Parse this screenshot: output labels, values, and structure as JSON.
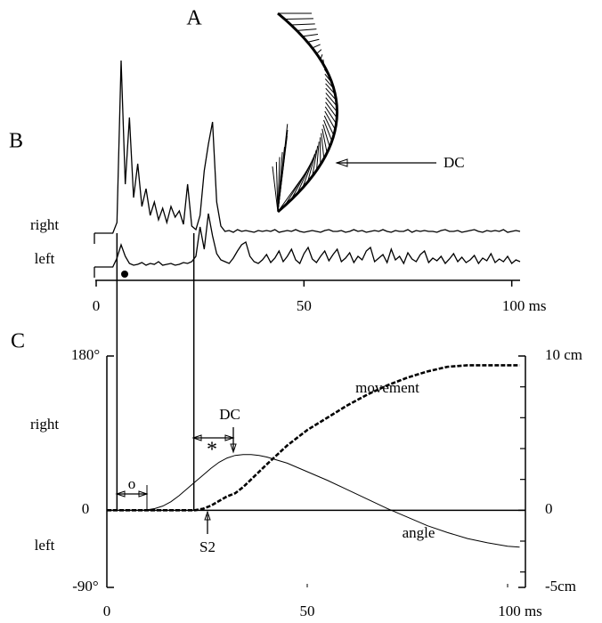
{
  "figure_labels": [
    "A",
    "B",
    "C"
  ],
  "panel_a": {
    "annotation": "DC"
  },
  "chart_data": [
    {
      "type": "line",
      "x": [
        0,
        1,
        2,
        3,
        4,
        5,
        6,
        7,
        8,
        9,
        10,
        11,
        12,
        13,
        14,
        15,
        16,
        17,
        18,
        19,
        20,
        21,
        22,
        23,
        24,
        25,
        26,
        27,
        28,
        29,
        30,
        31,
        32,
        33,
        34,
        35,
        36,
        37,
        38,
        39,
        40,
        41,
        42,
        43,
        44,
        45,
        46,
        47,
        48,
        49,
        50,
        51,
        52,
        53,
        54,
        55,
        56,
        57,
        58,
        59,
        60,
        61,
        62,
        63,
        64,
        65,
        66,
        67,
        68,
        69,
        70,
        71,
        72,
        73,
        74,
        75,
        76,
        77,
        78,
        79,
        80,
        81,
        82,
        83,
        84,
        85,
        86,
        87,
        88,
        89,
        90,
        91,
        92,
        93,
        94,
        95,
        96,
        97,
        98,
        99,
        100,
        101,
        102
      ],
      "series": [
        {
          "name": "right",
          "color": "#000000",
          "values": [
            0,
            0,
            0,
            0,
            0,
            12,
            194,
            55,
            130,
            40,
            78,
            30,
            50,
            20,
            35,
            15,
            28,
            12,
            30,
            18,
            25,
            10,
            55,
            8,
            4,
            20,
            70,
            100,
            125,
            35,
            8,
            2,
            3,
            1,
            4,
            2,
            3,
            2,
            1,
            3,
            2,
            3,
            2,
            4,
            1,
            2,
            3,
            2,
            4,
            2,
            1,
            2,
            3,
            2,
            1,
            3,
            4,
            2,
            2,
            3,
            1,
            2,
            4,
            2,
            3,
            1,
            2,
            3,
            2,
            4,
            2,
            1,
            3,
            2,
            2,
            4,
            1,
            3,
            2,
            3,
            2,
            2,
            1,
            3,
            4,
            2,
            2,
            3,
            1,
            2,
            3,
            4,
            2,
            1,
            3,
            2,
            3,
            2,
            4,
            1,
            2,
            3,
            2
          ]
        },
        {
          "name": "left",
          "color": "#000000",
          "values": [
            0,
            0,
            0,
            0,
            0,
            10,
            25,
            12,
            4,
            2,
            3,
            5,
            2,
            4,
            3,
            6,
            2,
            3,
            4,
            2,
            3,
            5,
            4,
            6,
            12,
            45,
            20,
            60,
            35,
            15,
            8,
            6,
            4,
            10,
            18,
            25,
            28,
            12,
            6,
            4,
            8,
            14,
            5,
            10,
            18,
            6,
            12,
            20,
            8,
            4,
            15,
            22,
            9,
            5,
            12,
            18,
            7,
            14,
            20,
            6,
            10,
            16,
            5,
            12,
            8,
            18,
            22,
            6,
            10,
            14,
            5,
            20,
            8,
            12,
            4,
            16,
            9,
            6,
            14,
            18,
            5,
            10,
            7,
            12,
            4,
            9,
            15,
            6,
            11,
            5,
            8,
            13,
            4,
            10,
            7,
            15,
            5,
            9,
            6,
            12,
            4,
            8,
            6
          ]
        }
      ],
      "ylim": [
        0,
        200
      ],
      "xlim": [
        0,
        102
      ],
      "xticks": [
        0,
        50,
        {
          "value": 100,
          "label": "100 ms"
        }
      ],
      "onset_times": [
        5,
        23.5
      ]
    },
    {
      "type": "line",
      "series": [
        {
          "name": "angle",
          "color": "#000000",
          "axis": "y",
          "x": [
            0,
            4,
            8,
            10,
            12,
            14,
            16,
            18,
            20,
            22,
            24,
            26,
            28,
            30,
            32,
            34,
            36,
            38,
            40,
            45,
            50,
            55,
            60,
            65,
            70,
            75,
            80,
            85,
            90,
            95,
            100,
            103
          ],
          "values": [
            0,
            0,
            0,
            0.5,
            2,
            5,
            10,
            17,
            25,
            33,
            41,
            49,
            56,
            61,
            64,
            65,
            65,
            64,
            62,
            55,
            45,
            35,
            24,
            13,
            2,
            -8,
            -18,
            -26,
            -33,
            -38,
            -42,
            -43
          ]
        },
        {
          "name": "movement",
          "color": "#000000",
          "axis": "y2",
          "dashed": true,
          "x": [
            0,
            10,
            20,
            22,
            24,
            26,
            28,
            30,
            32,
            34,
            36,
            40,
            45,
            50,
            55,
            60,
            65,
            70,
            75,
            80,
            85,
            90,
            95,
            100,
            103
          ],
          "values": [
            0,
            0,
            0,
            0,
            0.1,
            0.3,
            0.6,
            0.9,
            1.1,
            1.5,
            2.0,
            3.0,
            4.2,
            5.2,
            6.0,
            6.8,
            7.5,
            8.1,
            8.6,
            9.0,
            9.3,
            9.4,
            9.4,
            9.4,
            9.4
          ]
        }
      ],
      "xlim": [
        0,
        104
      ],
      "xticks": [
        0,
        50,
        {
          "value": 100,
          "label": "100 ms"
        }
      ],
      "ylim": [
        -90,
        180
      ],
      "yticks": [
        {
          "value": 180,
          "label": "180°"
        },
        0,
        {
          "value": -90,
          "label": "-90°"
        }
      ],
      "y2lim": [
        -5,
        10
      ],
      "y2ticks": [
        {
          "value": 10,
          "label": "10 cm"
        },
        0,
        {
          "value": -5,
          "label": "-5cm"
        }
      ],
      "y2_minor_ticks": [
        8,
        6,
        4,
        2,
        -2,
        -4
      ],
      "ylabels": [
        "right",
        "left"
      ],
      "annotations": {
        "dc": "DC",
        "star": "*",
        "circle": "o",
        "s2": "S2"
      }
    }
  ]
}
